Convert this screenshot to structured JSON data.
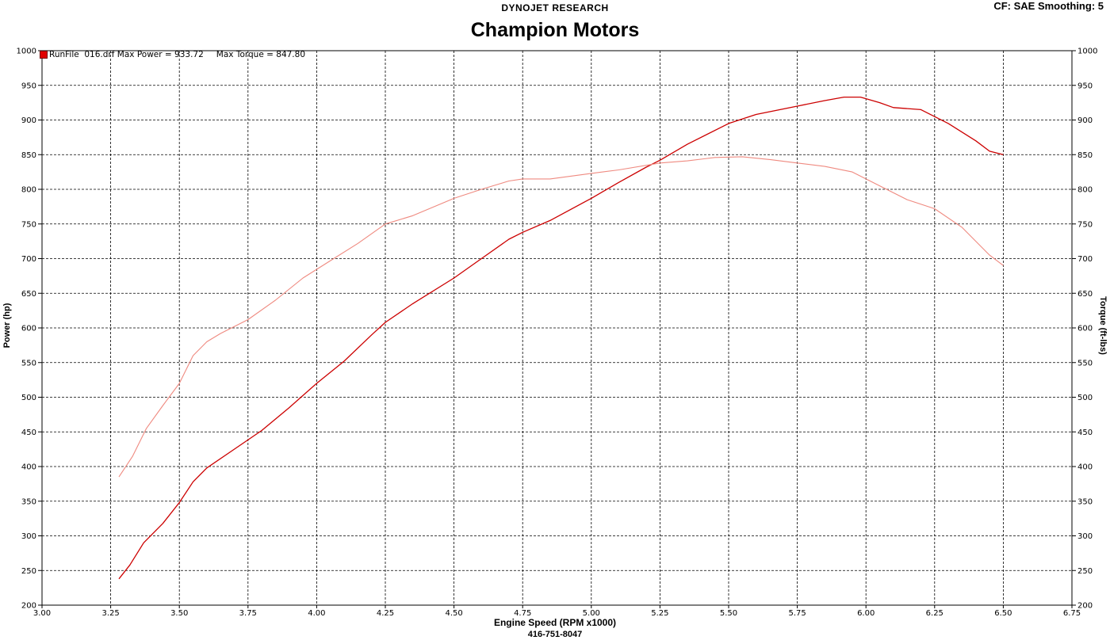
{
  "header": {
    "brand": "DYNOJET RESEARCH",
    "title": "Champion Motors",
    "settings": "CF: SAE  Smoothing: 5"
  },
  "legend": {
    "run_file": "RunFile  016.drf Max Power = 933.72",
    "max_torque": "Max Torque = 847.80"
  },
  "footer": {
    "phone": "416-751-8047"
  },
  "colors": {
    "power": "#cc0000",
    "torque": "#ef8a80",
    "grid": "#000000"
  },
  "chart_data": {
    "type": "line",
    "xlabel": "Engine Speed (RPM x1000)",
    "ylabel": "Power (hp)",
    "ylabel_right": "Torque (ft-lbs)",
    "xlim": [
      3.0,
      6.75
    ],
    "ylim": [
      200,
      1000
    ],
    "ylim_right": [
      200,
      1000
    ],
    "x_ticks": [
      "3.00",
      "3.25",
      "3.50",
      "3.75",
      "4.00",
      "4.25",
      "4.50",
      "4.75",
      "5.00",
      "5.25",
      "5.50",
      "5.75",
      "6.00",
      "6.25",
      "6.50",
      "6.75"
    ],
    "y_ticks": [
      "200",
      "250",
      "300",
      "350",
      "400",
      "450",
      "500",
      "550",
      "600",
      "650",
      "700",
      "750",
      "800",
      "850",
      "900",
      "950",
      "1000"
    ],
    "grid": true,
    "legend_position": "top-left",
    "series": [
      {
        "name": "Max Power",
        "axis": "left",
        "points": [
          [
            3.28,
            238
          ],
          [
            3.32,
            258
          ],
          [
            3.37,
            290
          ],
          [
            3.44,
            318
          ],
          [
            3.5,
            348
          ],
          [
            3.55,
            378
          ],
          [
            3.6,
            398
          ],
          [
            3.7,
            425
          ],
          [
            3.8,
            452
          ],
          [
            3.9,
            485
          ],
          [
            4.0,
            520
          ],
          [
            4.1,
            552
          ],
          [
            4.2,
            590
          ],
          [
            4.25,
            608
          ],
          [
            4.35,
            635
          ],
          [
            4.5,
            672
          ],
          [
            4.6,
            700
          ],
          [
            4.7,
            728
          ],
          [
            4.75,
            738
          ],
          [
            4.85,
            755
          ],
          [
            5.0,
            787
          ],
          [
            5.1,
            810
          ],
          [
            5.2,
            832
          ],
          [
            5.25,
            842
          ],
          [
            5.35,
            865
          ],
          [
            5.5,
            895
          ],
          [
            5.6,
            908
          ],
          [
            5.75,
            920
          ],
          [
            5.85,
            928
          ],
          [
            5.92,
            933
          ],
          [
            5.98,
            933
          ],
          [
            6.05,
            925
          ],
          [
            6.1,
            918
          ],
          [
            6.2,
            915
          ],
          [
            6.3,
            895
          ],
          [
            6.4,
            870
          ],
          [
            6.45,
            855
          ],
          [
            6.5,
            850
          ]
        ]
      },
      {
        "name": "Max Torque",
        "axis": "right",
        "points": [
          [
            3.28,
            385
          ],
          [
            3.33,
            415
          ],
          [
            3.38,
            455
          ],
          [
            3.44,
            488
          ],
          [
            3.5,
            520
          ],
          [
            3.55,
            560
          ],
          [
            3.6,
            580
          ],
          [
            3.65,
            592
          ],
          [
            3.75,
            612
          ],
          [
            3.85,
            640
          ],
          [
            3.95,
            672
          ],
          [
            4.05,
            697
          ],
          [
            4.15,
            722
          ],
          [
            4.25,
            750
          ],
          [
            4.35,
            762
          ],
          [
            4.5,
            787
          ],
          [
            4.6,
            800
          ],
          [
            4.7,
            812
          ],
          [
            4.75,
            815
          ],
          [
            4.85,
            815
          ],
          [
            5.0,
            823
          ],
          [
            5.1,
            828
          ],
          [
            5.25,
            838
          ],
          [
            5.35,
            841
          ],
          [
            5.45,
            846
          ],
          [
            5.55,
            847
          ],
          [
            5.65,
            843
          ],
          [
            5.75,
            838
          ],
          [
            5.85,
            833
          ],
          [
            5.95,
            825
          ],
          [
            6.05,
            805
          ],
          [
            6.15,
            785
          ],
          [
            6.25,
            772
          ],
          [
            6.35,
            745
          ],
          [
            6.45,
            705
          ],
          [
            6.5,
            690
          ]
        ]
      }
    ]
  }
}
